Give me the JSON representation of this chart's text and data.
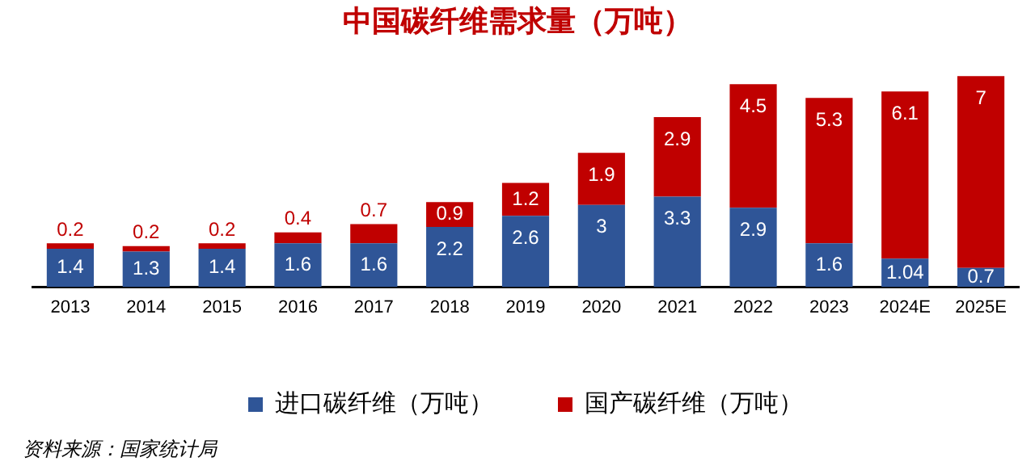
{
  "chart_data": {
    "type": "bar",
    "title": "中国碳纤维需求量（万吨）",
    "stacked": true,
    "data_labels": true,
    "legend": "bottom",
    "grid": false,
    "categories": [
      "2013",
      "2014",
      "2015",
      "2016",
      "2017",
      "2018",
      "2019",
      "2020",
      "2021",
      "2022",
      "2023",
      "2024E",
      "2025E"
    ],
    "series": [
      {
        "name": "进口碳纤维（万吨）",
        "color": "#2f5597",
        "values": [
          1.4,
          1.3,
          1.4,
          1.6,
          1.6,
          2.2,
          2.6,
          3,
          3.3,
          2.9,
          1.6,
          1.04,
          0.7
        ]
      },
      {
        "name": "国产碳纤维（万吨）",
        "color": "#c00000",
        "values": [
          0.2,
          0.2,
          0.2,
          0.4,
          0.7,
          0.9,
          1.2,
          1.9,
          2.9,
          4.5,
          5.3,
          6.1,
          7
        ]
      }
    ],
    "annotations": [
      "资料来源：国家统计局"
    ]
  }
}
